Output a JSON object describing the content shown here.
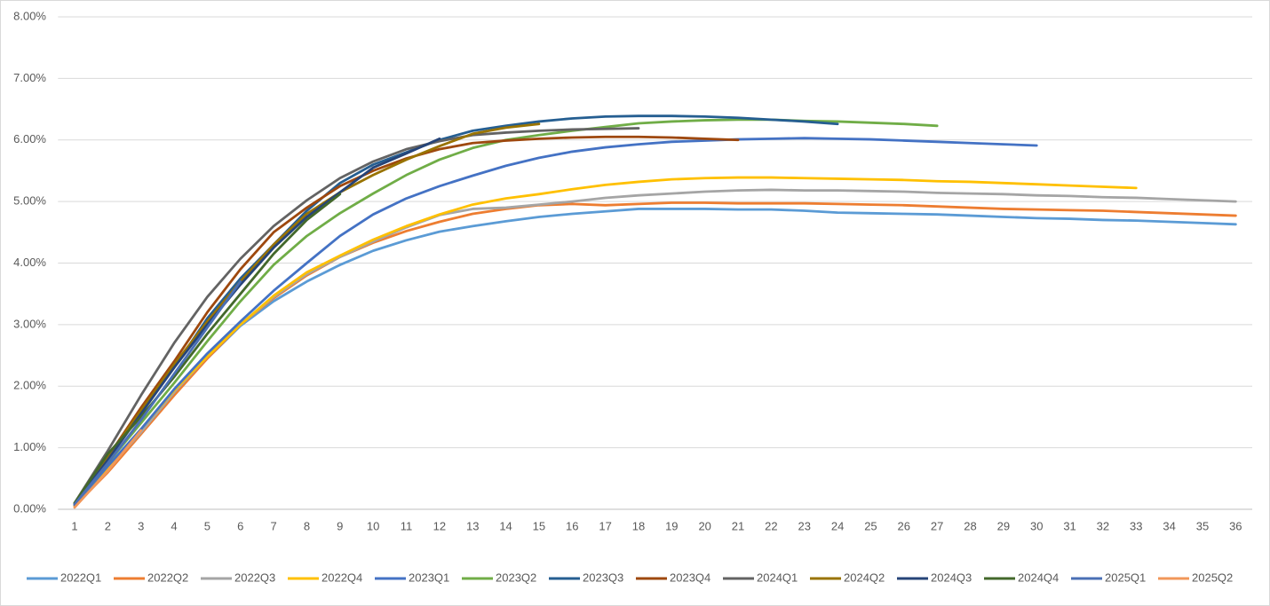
{
  "chart_data": {
    "type": "line",
    "categories": [
      1,
      2,
      3,
      4,
      5,
      6,
      7,
      8,
      9,
      10,
      11,
      12,
      13,
      14,
      15,
      16,
      17,
      18,
      19,
      20,
      21,
      22,
      23,
      24,
      25,
      26,
      27,
      28,
      29,
      30,
      31,
      32,
      33,
      34,
      35,
      36
    ],
    "ylim": [
      0,
      8
    ],
    "yticks": [
      {
        "value": 0,
        "label": "0.00%"
      },
      {
        "value": 1,
        "label": "1.00%"
      },
      {
        "value": 2,
        "label": "2.00%"
      },
      {
        "value": 3,
        "label": "3.00%"
      },
      {
        "value": 4,
        "label": "4.00%"
      },
      {
        "value": 5,
        "label": "5.00%"
      },
      {
        "value": 6,
        "label": "6.00%"
      },
      {
        "value": 7,
        "label": "7.00%"
      },
      {
        "value": 8,
        "label": "8.00%"
      }
    ],
    "grid": true,
    "legend": "bottom",
    "series": [
      {
        "name": "2022Q1",
        "color": "#5b9bd5",
        "values": [
          0.08,
          0.65,
          1.25,
          1.88,
          2.45,
          2.98,
          3.38,
          3.7,
          3.97,
          4.2,
          4.37,
          4.51,
          4.6,
          4.68,
          4.75,
          4.8,
          4.84,
          4.88,
          4.88,
          4.88,
          4.87,
          4.87,
          4.85,
          4.82,
          4.81,
          4.8,
          4.79,
          4.77,
          4.75,
          4.73,
          4.72,
          4.7,
          4.69,
          4.67,
          4.65,
          4.63
        ]
      },
      {
        "name": "2022Q2",
        "color": "#ed7d31",
        "values": [
          0.05,
          0.6,
          1.22,
          1.85,
          2.45,
          3.0,
          3.43,
          3.8,
          4.1,
          4.33,
          4.52,
          4.67,
          4.8,
          4.88,
          4.94,
          4.96,
          4.94,
          4.96,
          4.98,
          4.98,
          4.97,
          4.97,
          4.97,
          4.96,
          4.95,
          4.94,
          4.92,
          4.9,
          4.88,
          4.87,
          4.86,
          4.85,
          4.83,
          4.81,
          4.79,
          4.77
        ]
      },
      {
        "name": "2022Q3",
        "color": "#a5a5a5",
        "values": [
          0.06,
          0.65,
          1.25,
          1.9,
          2.48,
          3.0,
          3.45,
          3.82,
          4.1,
          4.35,
          4.58,
          4.78,
          4.88,
          4.9,
          4.95,
          5.0,
          5.06,
          5.1,
          5.13,
          5.16,
          5.18,
          5.19,
          5.18,
          5.18,
          5.17,
          5.16,
          5.14,
          5.13,
          5.12,
          5.1,
          5.09,
          5.07,
          5.06,
          5.04,
          5.02,
          5.0
        ]
      },
      {
        "name": "2022Q4",
        "color": "#ffc000",
        "values": [
          0.06,
          0.65,
          1.3,
          1.93,
          2.48,
          3.0,
          3.47,
          3.85,
          4.12,
          4.38,
          4.6,
          4.79,
          4.95,
          5.05,
          5.12,
          5.2,
          5.27,
          5.32,
          5.36,
          5.38,
          5.39,
          5.39,
          5.38,
          5.37,
          5.36,
          5.35,
          5.33,
          5.32,
          5.3,
          5.28,
          5.26,
          5.24,
          5.22,
          null,
          null,
          null
        ]
      },
      {
        "name": "2023Q1",
        "color": "#4472c4",
        "values": [
          0.07,
          0.7,
          1.3,
          1.95,
          2.53,
          3.05,
          3.55,
          4.0,
          4.44,
          4.79,
          5.05,
          5.25,
          5.42,
          5.58,
          5.71,
          5.81,
          5.88,
          5.93,
          5.97,
          5.99,
          6.01,
          6.02,
          6.03,
          6.02,
          6.01,
          5.99,
          5.97,
          5.95,
          5.93,
          5.91,
          null,
          null,
          null,
          null,
          null,
          null
        ]
      },
      {
        "name": "2023Q2",
        "color": "#70ad47",
        "values": [
          0.08,
          0.75,
          1.4,
          2.05,
          2.73,
          3.38,
          3.97,
          4.44,
          4.81,
          5.13,
          5.43,
          5.68,
          5.87,
          6.0,
          6.08,
          6.15,
          6.21,
          6.27,
          6.3,
          6.32,
          6.33,
          6.33,
          6.31,
          6.3,
          6.28,
          6.26,
          6.23,
          null,
          null,
          null,
          null,
          null,
          null,
          null,
          null,
          null
        ]
      },
      {
        "name": "2023Q3",
        "color": "#255e91",
        "values": [
          0.1,
          0.85,
          1.6,
          2.3,
          3.1,
          3.75,
          4.3,
          4.85,
          5.3,
          5.6,
          5.8,
          6.0,
          6.15,
          6.23,
          6.3,
          6.35,
          6.38,
          6.39,
          6.39,
          6.38,
          6.36,
          6.33,
          6.3,
          6.26,
          null,
          null,
          null,
          null,
          null,
          null,
          null,
          null,
          null,
          null,
          null,
          null
        ]
      },
      {
        "name": "2023Q4",
        "color": "#9e480e",
        "values": [
          0.1,
          0.85,
          1.65,
          2.4,
          3.2,
          3.9,
          4.5,
          4.9,
          5.25,
          5.5,
          5.7,
          5.85,
          5.95,
          5.99,
          6.02,
          6.04,
          6.05,
          6.05,
          6.04,
          6.02,
          6.0,
          null,
          null,
          null,
          null,
          null,
          null,
          null,
          null,
          null,
          null,
          null,
          null,
          null,
          null,
          null
        ]
      },
      {
        "name": "2024Q1",
        "color": "#636363",
        "values": [
          0.1,
          0.95,
          1.85,
          2.7,
          3.45,
          4.07,
          4.6,
          5.02,
          5.38,
          5.65,
          5.85,
          5.98,
          6.08,
          6.12,
          6.15,
          6.17,
          6.18,
          6.19,
          null,
          null,
          null,
          null,
          null,
          null,
          null,
          null,
          null,
          null,
          null,
          null,
          null,
          null,
          null,
          null,
          null,
          null
        ]
      },
      {
        "name": "2024Q2",
        "color": "#997300",
        "values": [
          0.09,
          0.85,
          1.6,
          2.35,
          3.05,
          3.7,
          4.3,
          4.8,
          5.15,
          5.43,
          5.68,
          5.9,
          6.1,
          6.2,
          6.26,
          null,
          null,
          null,
          null,
          null,
          null,
          null,
          null,
          null,
          null,
          null,
          null,
          null,
          null,
          null,
          null,
          null,
          null,
          null,
          null,
          null
        ]
      },
      {
        "name": "2024Q3",
        "color": "#264478",
        "values": [
          0.08,
          0.8,
          1.55,
          2.3,
          3.0,
          3.65,
          4.25,
          4.75,
          5.15,
          5.55,
          5.78,
          6.02,
          null,
          null,
          null,
          null,
          null,
          null,
          null,
          null,
          null,
          null,
          null,
          null,
          null,
          null,
          null,
          null,
          null,
          null,
          null,
          null,
          null,
          null,
          null,
          null
        ]
      },
      {
        "name": "2024Q4",
        "color": "#43682b",
        "values": [
          0.1,
          0.9,
          1.5,
          2.15,
          2.85,
          3.5,
          4.15,
          4.7,
          5.12,
          null,
          null,
          null,
          null,
          null,
          null,
          null,
          null,
          null,
          null,
          null,
          null,
          null,
          null,
          null,
          null,
          null,
          null,
          null,
          null,
          null,
          null,
          null,
          null,
          null,
          null,
          null
        ]
      },
      {
        "name": "2025Q1",
        "color": "#4a6fb5",
        "values": [
          0.08,
          0.75,
          1.45,
          2.2,
          2.95,
          3.7,
          null,
          null,
          null,
          null,
          null,
          null,
          null,
          null,
          null,
          null,
          null,
          null,
          null,
          null,
          null,
          null,
          null,
          null,
          null,
          null,
          null,
          null,
          null,
          null,
          null,
          null,
          null,
          null,
          null,
          null
        ]
      },
      {
        "name": "2025Q2",
        "color": "#f1975a",
        "values": [
          0.03,
          0.62,
          1.28,
          null,
          null,
          null,
          null,
          null,
          null,
          null,
          null,
          null,
          null,
          null,
          null,
          null,
          null,
          null,
          null,
          null,
          null,
          null,
          null,
          null,
          null,
          null,
          null,
          null,
          null,
          null,
          null,
          null,
          null,
          null,
          null,
          null
        ]
      }
    ]
  }
}
